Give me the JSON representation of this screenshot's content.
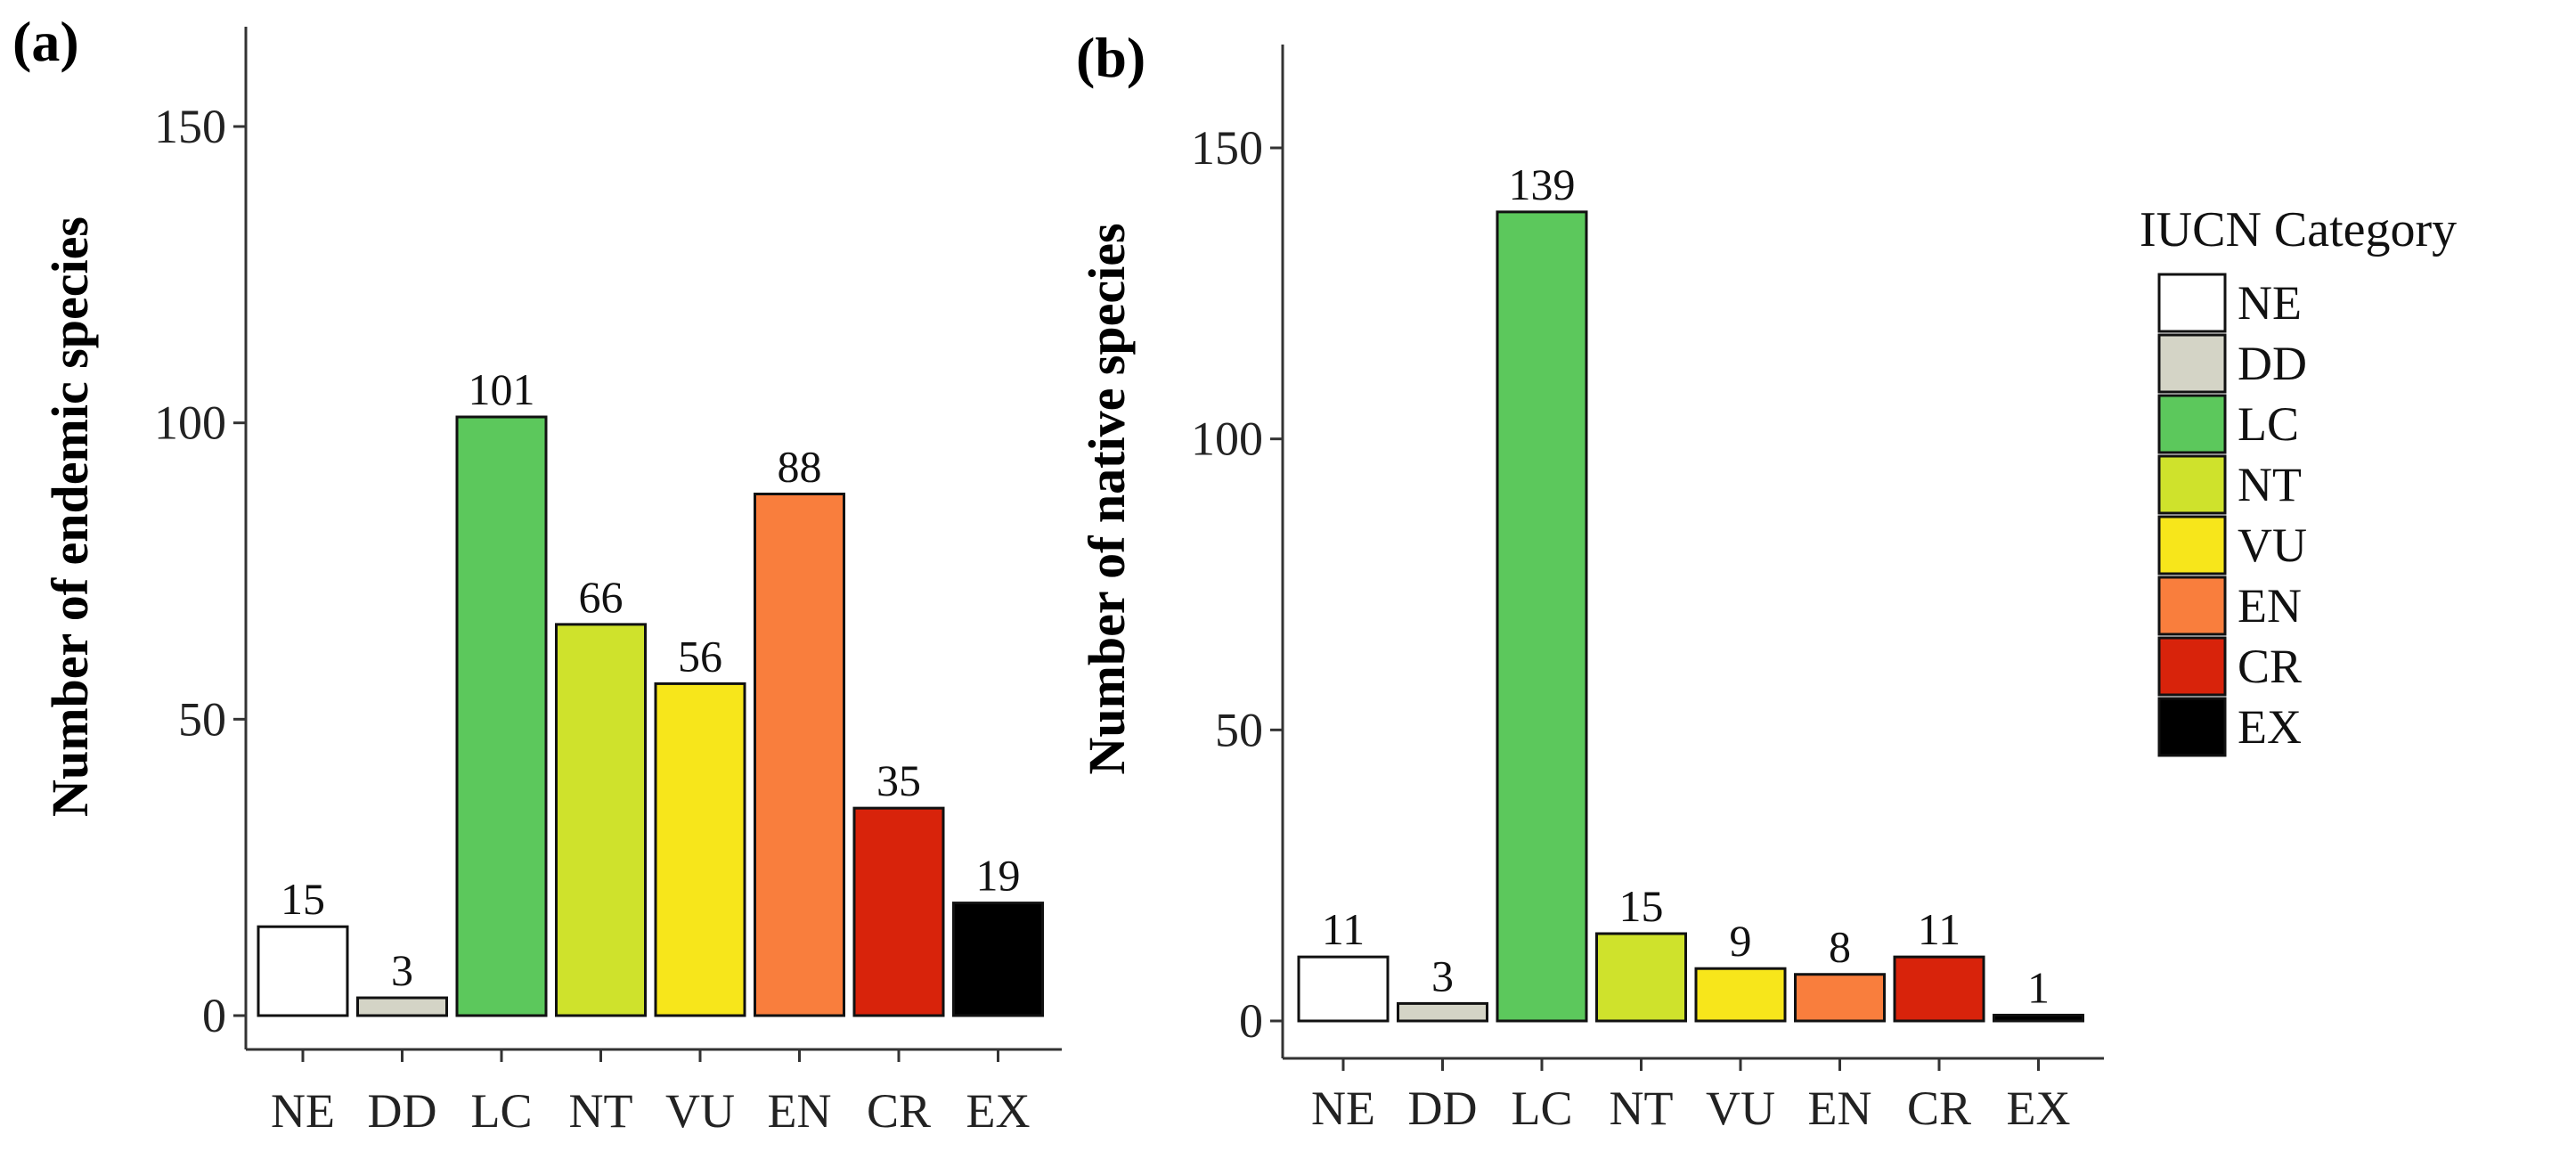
{
  "colors": {
    "NE": "#ffffff",
    "DD": "#d4d4c6",
    "LC": "#5cc85c",
    "NT": "#cfe22c",
    "VU": "#f7e61b",
    "EN": "#f97e3d",
    "CR": "#d8230b",
    "EX": "#000000"
  },
  "chart_data": [
    {
      "panel_label": "(a)",
      "type": "bar",
      "categories": [
        "NE",
        "DD",
        "LC",
        "NT",
        "VU",
        "EN",
        "CR",
        "EX"
      ],
      "values": [
        15,
        3,
        101,
        66,
        56,
        88,
        35,
        19
      ],
      "data_labels": [
        "15",
        "3",
        "101",
        "66",
        "56",
        "88",
        "35",
        "19"
      ],
      "ylabel": "Number of endemic species",
      "xlabel": "",
      "ylim": [
        0,
        165
      ],
      "yticks": [
        0,
        50,
        100,
        150
      ],
      "ytick_labels": [
        "0",
        "50",
        "100",
        "150"
      ],
      "grid": false
    },
    {
      "panel_label": "(b)",
      "type": "bar",
      "categories": [
        "NE",
        "DD",
        "LC",
        "NT",
        "VU",
        "EN",
        "CR",
        "EX"
      ],
      "values": [
        11,
        3,
        139,
        15,
        9,
        8,
        11,
        1
      ],
      "data_labels": [
        "11",
        "3",
        "139",
        "15",
        "9",
        "8",
        "11",
        "1"
      ],
      "ylabel": "Number of native species",
      "xlabel": "",
      "ylim": [
        0,
        168
      ],
      "yticks": [
        0,
        50,
        100,
        150
      ],
      "ytick_labels": [
        "0",
        "50",
        "100",
        "150"
      ],
      "grid": false
    }
  ],
  "legend": {
    "title": "IUCN Category",
    "items": [
      "NE",
      "DD",
      "LC",
      "NT",
      "VU",
      "EN",
      "CR",
      "EX"
    ],
    "placement": "right"
  }
}
